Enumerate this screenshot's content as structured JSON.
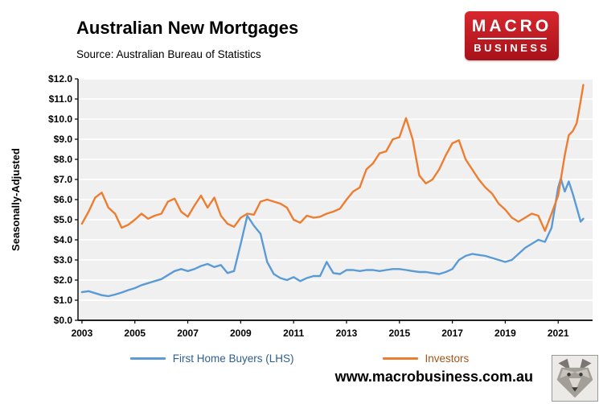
{
  "header": {
    "title": "Australian New Mortgages",
    "source": "Source: Australian Bureau of Statistics"
  },
  "logo": {
    "line1": "MACRO",
    "line2": "BUSINESS",
    "bg_color": "#c1191f"
  },
  "footer": {
    "website": "www.macrobusiness.com.au"
  },
  "legend": [
    {
      "label": "First Home Buyers (LHS)",
      "color": "#5b9bd5",
      "label_color": "#2f5e91"
    },
    {
      "label": "Investors",
      "color": "#ed7d31",
      "label_color": "#a85418"
    }
  ],
  "chart_data": {
    "type": "line",
    "title": "Australian New Mortgages",
    "ylabel": "Seasonally-Adjusted",
    "ylim": [
      0,
      12
    ],
    "xlim": [
      2002.85,
      2022.3
    ],
    "plot_bg": "#f0f0f0",
    "grid": "horizontal-white",
    "legend_position": "bottom",
    "y_tick_labels": [
      "$0.0",
      "$1.0",
      "$2.0",
      "$3.0",
      "$4.0",
      "$5.0",
      "$6.0",
      "$7.0",
      "$8.0",
      "$9.0",
      "$10.0",
      "$11.0",
      "$12.0"
    ],
    "x_tick_years": [
      2003,
      2005,
      2007,
      2009,
      2011,
      2013,
      2015,
      2017,
      2019,
      2021
    ],
    "x": [
      2003.0,
      2003.25,
      2003.5,
      2003.75,
      2004.0,
      2004.25,
      2004.5,
      2004.75,
      2005.0,
      2005.25,
      2005.5,
      2005.75,
      2006.0,
      2006.25,
      2006.5,
      2006.75,
      2007.0,
      2007.25,
      2007.5,
      2007.75,
      2008.0,
      2008.25,
      2008.5,
      2008.75,
      2009.0,
      2009.25,
      2009.5,
      2009.75,
      2010.0,
      2010.25,
      2010.5,
      2010.75,
      2011.0,
      2011.25,
      2011.5,
      2011.75,
      2012.0,
      2012.25,
      2012.5,
      2012.75,
      2013.0,
      2013.25,
      2013.5,
      2013.75,
      2014.0,
      2014.25,
      2014.5,
      2014.75,
      2015.0,
      2015.25,
      2015.5,
      2015.75,
      2016.0,
      2016.25,
      2016.5,
      2016.75,
      2017.0,
      2017.25,
      2017.5,
      2017.75,
      2018.0,
      2018.25,
      2018.5,
      2018.75,
      2019.0,
      2019.25,
      2019.5,
      2019.75,
      2020.0,
      2020.25,
      2020.5,
      2020.75,
      2021.0,
      2021.1,
      2021.25,
      2021.4,
      2021.55,
      2021.7,
      2021.85,
      2021.95
    ],
    "series": [
      {
        "name": "First Home Buyers (LHS)",
        "color": "#5b9bd5",
        "y": [
          1.4,
          1.45,
          1.35,
          1.25,
          1.2,
          1.28,
          1.38,
          1.5,
          1.6,
          1.75,
          1.85,
          1.95,
          2.05,
          2.25,
          2.45,
          2.55,
          2.45,
          2.55,
          2.7,
          2.8,
          2.65,
          2.75,
          2.35,
          2.45,
          3.8,
          5.2,
          4.7,
          4.3,
          2.9,
          2.3,
          2.1,
          2.0,
          2.15,
          1.95,
          2.1,
          2.2,
          2.2,
          2.9,
          2.35,
          2.3,
          2.5,
          2.5,
          2.45,
          2.5,
          2.5,
          2.45,
          2.5,
          2.55,
          2.55,
          2.5,
          2.45,
          2.4,
          2.4,
          2.35,
          2.3,
          2.4,
          2.55,
          3.0,
          3.2,
          3.3,
          3.25,
          3.2,
          3.1,
          3.0,
          2.9,
          3.0,
          3.3,
          3.6,
          3.8,
          4.0,
          3.9,
          4.6,
          6.6,
          7.05,
          6.4,
          6.9,
          6.3,
          5.6,
          4.9,
          5.05
        ]
      },
      {
        "name": "Investors",
        "color": "#ed7d31",
        "y": [
          4.8,
          5.4,
          6.1,
          6.35,
          5.6,
          5.3,
          4.6,
          4.75,
          5.0,
          5.3,
          5.05,
          5.2,
          5.3,
          5.9,
          6.05,
          5.4,
          5.15,
          5.7,
          6.2,
          5.6,
          6.1,
          5.2,
          4.8,
          4.65,
          5.1,
          5.3,
          5.25,
          5.9,
          6.0,
          5.9,
          5.8,
          5.6,
          5.0,
          4.85,
          5.2,
          5.1,
          5.15,
          5.3,
          5.4,
          5.55,
          6.0,
          6.4,
          6.6,
          7.5,
          7.8,
          8.3,
          8.4,
          9.0,
          9.1,
          10.05,
          9.0,
          7.2,
          6.8,
          7.0,
          7.5,
          8.2,
          8.8,
          8.95,
          8.0,
          7.5,
          7.0,
          6.6,
          6.3,
          5.8,
          5.5,
          5.1,
          4.9,
          5.1,
          5.3,
          5.2,
          4.45,
          5.3,
          6.2,
          7.0,
          8.2,
          9.2,
          9.4,
          9.8,
          10.9,
          11.7
        ]
      }
    ]
  }
}
